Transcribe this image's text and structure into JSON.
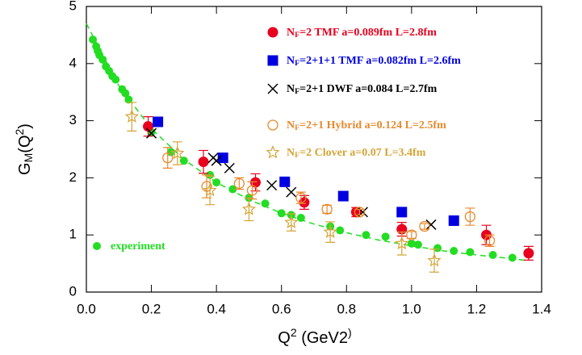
{
  "chart_data": {
    "type": "scatter",
    "xlabel": "Q2 (GeV2)",
    "ylabel": "GM(Q2)",
    "xlim": [
      0,
      1.4
    ],
    "ylim": [
      0,
      5
    ],
    "xticks": [
      {
        "value": 0,
        "label": "0.0"
      },
      0.2,
      0.4,
      0.6,
      0.8,
      {
        "value": 1,
        "label": "1.0"
      },
      1.2,
      1.4
    ],
    "yticks": [
      0,
      1,
      2,
      3,
      4,
      5
    ],
    "series": [
      {
        "line": "dashed",
        "color": "#22dd22",
        "x": [
          0,
          0.1,
          0.2,
          0.3,
          0.4,
          0.5,
          0.6,
          0.7,
          0.8,
          0.9,
          1.0,
          1.1,
          1.2,
          1.3,
          1.36
        ],
        "values": [
          4.7,
          3.61,
          2.86,
          2.32,
          1.92,
          1.62,
          1.38,
          1.19,
          1.04,
          0.91,
          0.81,
          0.72,
          0.65,
          0.59,
          0.55
        ]
      },
      {
        "name": "experiment",
        "marker": "dot",
        "color": "#22dd22",
        "x": [
          0.02,
          0.03,
          0.035,
          0.04,
          0.05,
          0.06,
          0.07,
          0.08,
          0.09,
          0.11,
          0.12,
          0.13,
          0.2,
          0.26,
          0.3,
          0.38,
          0.4,
          0.45,
          0.5,
          0.55,
          0.6,
          0.63,
          0.66,
          0.75,
          0.78,
          0.86,
          0.92,
          1.0,
          1.02,
          1.08,
          1.13,
          1.18,
          1.25,
          1.31
        ],
        "values": [
          4.42,
          4.3,
          4.22,
          4.15,
          4.07,
          3.95,
          3.87,
          3.78,
          3.72,
          3.55,
          3.48,
          3.37,
          2.8,
          2.45,
          2.3,
          2.05,
          1.92,
          1.8,
          1.65,
          1.55,
          1.38,
          1.35,
          1.3,
          1.15,
          1.08,
          1.0,
          0.97,
          0.85,
          0.83,
          0.77,
          0.72,
          0.7,
          0.65,
          0.6
        ]
      },
      {
        "name": "NF=2 TMF a=0.089fm L=2.8fm",
        "marker": "circle",
        "color": "#e8001e",
        "x": [
          0.19,
          0.36,
          0.52,
          0.67,
          0.83,
          0.97,
          1.23,
          1.36
        ],
        "values": [
          2.9,
          2.28,
          1.92,
          1.57,
          1.4,
          1.1,
          1.0,
          0.68
        ],
        "errors": [
          0.17,
          0.2,
          0.15,
          0.12,
          0.08,
          0.12,
          0.17,
          0.12
        ]
      },
      {
        "name": "NF=2+1+1 TMF a=0.082fm L=2.6fm",
        "marker": "square",
        "color": "#0000e0",
        "x": [
          0.22,
          0.42,
          0.61,
          0.79,
          0.97,
          1.13
        ],
        "values": [
          2.98,
          2.35,
          1.93,
          1.68,
          1.4,
          1.25
        ]
      },
      {
        "name": "NF=2+1 DWF a=0.084 L=2.7fm",
        "marker": "x",
        "color": "#000000",
        "x": [
          0.2,
          0.39,
          0.4,
          0.44,
          0.57,
          0.63,
          0.85,
          1.06
        ],
        "values": [
          2.78,
          2.35,
          2.3,
          2.17,
          1.87,
          1.75,
          1.4,
          1.18
        ]
      },
      {
        "name": "NF=2+1 Hybrid a=0.124 L=2.5fm",
        "marker": "open-circle",
        "color": "#e8892e",
        "x": [
          0.25,
          0.37,
          0.47,
          0.51,
          0.66,
          0.74,
          0.84,
          1.0,
          1.04,
          1.18,
          1.24
        ],
        "values": [
          2.35,
          1.85,
          1.9,
          1.78,
          1.65,
          1.45,
          1.4,
          1.0,
          1.15,
          1.32,
          0.9
        ],
        "errors": [
          0.18,
          0.2,
          0.1,
          0.15,
          0.1,
          0.07,
          0.05,
          0.06,
          0.05,
          0.15,
          0.1
        ]
      },
      {
        "name": "NF=2 Clover a=0.07 L=3.4fm",
        "marker": "star",
        "color": "#d4a437",
        "x": [
          0.14,
          0.28,
          0.38,
          0.5,
          0.63,
          0.75,
          0.97,
          1.07
        ],
        "values": [
          3.07,
          2.43,
          1.78,
          1.45,
          1.22,
          1.05,
          0.85,
          0.55
        ],
        "errors": [
          0.25,
          0.2,
          0.25,
          0.2,
          0.15,
          0.18,
          0.2,
          0.2
        ]
      }
    ]
  }
}
